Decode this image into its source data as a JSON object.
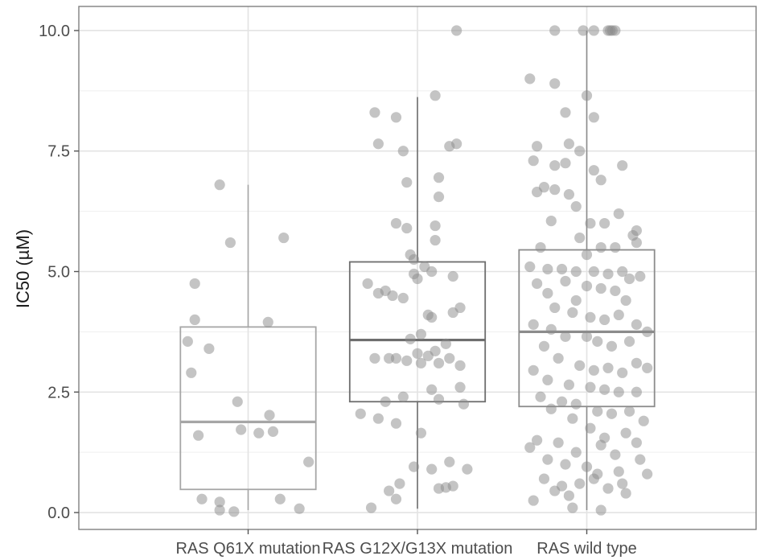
{
  "chart_data": {
    "type": "boxplot",
    "title": "",
    "xlabel": "",
    "ylabel": "IC50 (µM)",
    "ylim": [
      -0.35,
      10.5
    ],
    "yticks": [
      0.0,
      2.5,
      5.0,
      7.5,
      10.0
    ],
    "ytick_labels": [
      "0.0",
      "2.5",
      "5.0",
      "7.5",
      "10.0"
    ],
    "grid": true,
    "categories": [
      "RAS Q61X mutation",
      "RAS G12X/G13X mutation",
      "RAS wild type"
    ],
    "boxes": [
      {
        "category": "RAS Q61X mutation",
        "whisker_low": 0.05,
        "q1": 0.48,
        "median": 1.88,
        "q3": 3.85,
        "whisker_high": 6.8,
        "color": "#a6a6a6"
      },
      {
        "category": "RAS G12X/G13X mutation",
        "whisker_low": 0.08,
        "q1": 2.3,
        "median": 3.58,
        "q3": 5.2,
        "whisker_high": 8.62,
        "color": "#6e6e6e"
      },
      {
        "category": "RAS wild type",
        "whisker_low": 0.05,
        "q1": 2.2,
        "median": 3.75,
        "q3": 5.45,
        "whisker_high": 10.0,
        "color": "#8c8c8c"
      }
    ],
    "points": [
      [
        [
          -0.4,
          6.8
        ],
        [
          -0.25,
          5.6
        ],
        [
          0.5,
          5.7
        ],
        [
          -0.75,
          4.75
        ],
        [
          -0.75,
          4.0
        ],
        [
          0.28,
          3.95
        ],
        [
          -0.55,
          3.4
        ],
        [
          -0.85,
          3.55
        ],
        [
          -0.8,
          2.9
        ],
        [
          -0.15,
          2.3
        ],
        [
          0.3,
          2.02
        ],
        [
          0.35,
          1.68
        ],
        [
          0.15,
          1.65
        ],
        [
          -0.1,
          1.72
        ],
        [
          -0.7,
          1.6
        ],
        [
          0.85,
          1.05
        ],
        [
          -0.65,
          0.28
        ],
        [
          -0.4,
          0.22
        ],
        [
          0.45,
          0.28
        ],
        [
          -0.4,
          0.05
        ],
        [
          -0.2,
          0.02
        ],
        [
          0.72,
          0.08
        ]
      ],
      [
        [
          0.55,
          10.0
        ],
        [
          0.25,
          8.65
        ],
        [
          -0.6,
          8.3
        ],
        [
          -0.3,
          8.2
        ],
        [
          -0.55,
          7.65
        ],
        [
          -0.2,
          7.5
        ],
        [
          0.45,
          7.6
        ],
        [
          0.55,
          7.65
        ],
        [
          0.3,
          6.95
        ],
        [
          -0.15,
          6.85
        ],
        [
          0.3,
          6.55
        ],
        [
          -0.3,
          6.0
        ],
        [
          -0.15,
          5.9
        ],
        [
          0.25,
          5.95
        ],
        [
          0.25,
          5.65
        ],
        [
          -0.1,
          5.35
        ],
        [
          -0.05,
          5.25
        ],
        [
          0.1,
          5.1
        ],
        [
          -0.05,
          4.95
        ],
        [
          0.0,
          4.85
        ],
        [
          0.2,
          5.0
        ],
        [
          0.5,
          4.9
        ],
        [
          -0.7,
          4.75
        ],
        [
          -0.55,
          4.55
        ],
        [
          -0.45,
          4.6
        ],
        [
          -0.35,
          4.5
        ],
        [
          -0.2,
          4.45
        ],
        [
          0.6,
          4.25
        ],
        [
          0.5,
          4.15
        ],
        [
          0.15,
          4.1
        ],
        [
          0.2,
          4.05
        ],
        [
          0.05,
          3.7
        ],
        [
          -0.1,
          3.6
        ],
        [
          0.4,
          3.5
        ],
        [
          0.25,
          3.35
        ],
        [
          -0.6,
          3.2
        ],
        [
          -0.4,
          3.2
        ],
        [
          -0.3,
          3.2
        ],
        [
          -0.15,
          3.15
        ],
        [
          0.0,
          3.3
        ],
        [
          0.15,
          3.25
        ],
        [
          0.3,
          3.1
        ],
        [
          0.45,
          3.2
        ],
        [
          0.6,
          3.05
        ],
        [
          0.05,
          3.1
        ],
        [
          0.2,
          2.55
        ],
        [
          0.6,
          2.6
        ],
        [
          -0.2,
          2.4
        ],
        [
          0.3,
          2.35
        ],
        [
          0.65,
          2.25
        ],
        [
          -0.45,
          2.3
        ],
        [
          -0.8,
          2.05
        ],
        [
          -0.55,
          1.95
        ],
        [
          -0.3,
          1.85
        ],
        [
          0.05,
          1.65
        ],
        [
          0.45,
          1.05
        ],
        [
          0.2,
          0.9
        ],
        [
          -0.05,
          0.95
        ],
        [
          0.7,
          0.9
        ],
        [
          -0.25,
          0.6
        ],
        [
          0.3,
          0.5
        ],
        [
          0.4,
          0.52
        ],
        [
          0.5,
          0.55
        ],
        [
          -0.4,
          0.45
        ],
        [
          -0.3,
          0.28
        ],
        [
          -0.65,
          0.1
        ]
      ],
      [
        [
          -0.45,
          10.0
        ],
        [
          -0.05,
          10.0
        ],
        [
          0.1,
          10.0
        ],
        [
          0.3,
          10.0
        ],
        [
          0.33,
          10.0
        ],
        [
          0.36,
          10.0
        ],
        [
          0.4,
          10.0
        ],
        [
          -0.8,
          9.0
        ],
        [
          -0.45,
          8.9
        ],
        [
          0.0,
          8.65
        ],
        [
          0.1,
          8.2
        ],
        [
          -0.3,
          8.3
        ],
        [
          -0.25,
          7.65
        ],
        [
          -0.45,
          7.2
        ],
        [
          -0.7,
          7.6
        ],
        [
          -0.1,
          7.5
        ],
        [
          -0.3,
          7.25
        ],
        [
          -0.75,
          7.3
        ],
        [
          0.1,
          7.1
        ],
        [
          0.2,
          6.9
        ],
        [
          0.5,
          7.2
        ],
        [
          -0.6,
          6.75
        ],
        [
          -0.7,
          6.65
        ],
        [
          -0.45,
          6.7
        ],
        [
          -0.25,
          6.6
        ],
        [
          -0.15,
          6.35
        ],
        [
          0.05,
          6.0
        ],
        [
          0.25,
          6.0
        ],
        [
          0.45,
          6.2
        ],
        [
          -0.5,
          6.05
        ],
        [
          0.7,
          5.85
        ],
        [
          0.65,
          5.75
        ],
        [
          -0.1,
          5.7
        ],
        [
          0.2,
          5.5
        ],
        [
          0.4,
          5.5
        ],
        [
          0.7,
          5.6
        ],
        [
          -0.65,
          5.5
        ],
        [
          0.0,
          5.35
        ],
        [
          -0.8,
          5.1
        ],
        [
          -0.55,
          5.05
        ],
        [
          -0.35,
          5.05
        ],
        [
          -0.15,
          5.0
        ],
        [
          0.1,
          5.0
        ],
        [
          0.3,
          4.95
        ],
        [
          0.5,
          5.0
        ],
        [
          0.6,
          4.85
        ],
        [
          0.75,
          4.9
        ],
        [
          -0.7,
          4.75
        ],
        [
          -0.3,
          4.8
        ],
        [
          0.0,
          4.7
        ],
        [
          0.2,
          4.65
        ],
        [
          0.4,
          4.6
        ],
        [
          -0.55,
          4.55
        ],
        [
          -0.15,
          4.4
        ],
        [
          0.55,
          4.4
        ],
        [
          -0.45,
          4.25
        ],
        [
          -0.2,
          4.15
        ],
        [
          0.05,
          4.05
        ],
        [
          0.25,
          4.0
        ],
        [
          0.45,
          4.1
        ],
        [
          0.7,
          3.9
        ],
        [
          0.85,
          3.75
        ],
        [
          -0.75,
          3.9
        ],
        [
          -0.5,
          3.8
        ],
        [
          -0.3,
          3.65
        ],
        [
          0.0,
          3.65
        ],
        [
          0.15,
          3.55
        ],
        [
          0.35,
          3.45
        ],
        [
          0.6,
          3.55
        ],
        [
          -0.6,
          3.45
        ],
        [
          -0.4,
          3.2
        ],
        [
          -0.1,
          3.05
        ],
        [
          0.1,
          2.95
        ],
        [
          0.3,
          3.0
        ],
        [
          0.5,
          2.9
        ],
        [
          0.7,
          3.1
        ],
        [
          0.85,
          3.0
        ],
        [
          -0.75,
          2.95
        ],
        [
          -0.55,
          2.75
        ],
        [
          -0.25,
          2.65
        ],
        [
          0.05,
          2.6
        ],
        [
          0.25,
          2.55
        ],
        [
          0.45,
          2.5
        ],
        [
          0.7,
          2.5
        ],
        [
          -0.65,
          2.4
        ],
        [
          -0.35,
          2.3
        ],
        [
          -0.15,
          2.25
        ],
        [
          0.15,
          2.1
        ],
        [
          0.35,
          2.05
        ],
        [
          0.6,
          2.1
        ],
        [
          -0.5,
          2.15
        ],
        [
          -0.2,
          1.95
        ],
        [
          0.05,
          1.75
        ],
        [
          0.25,
          1.55
        ],
        [
          0.55,
          1.65
        ],
        [
          0.8,
          1.9
        ],
        [
          -0.7,
          1.5
        ],
        [
          -0.4,
          1.45
        ],
        [
          -0.15,
          1.25
        ],
        [
          0.2,
          1.4
        ],
        [
          0.4,
          1.2
        ],
        [
          0.7,
          1.45
        ],
        [
          -0.8,
          1.35
        ],
        [
          -0.55,
          1.1
        ],
        [
          -0.3,
          1.0
        ],
        [
          0.0,
          0.95
        ],
        [
          0.15,
          0.8
        ],
        [
          0.45,
          0.85
        ],
        [
          0.75,
          1.1
        ],
        [
          -0.6,
          0.7
        ],
        [
          -0.35,
          0.55
        ],
        [
          -0.1,
          0.6
        ],
        [
          0.1,
          0.7
        ],
        [
          0.3,
          0.5
        ],
        [
          0.5,
          0.6
        ],
        [
          0.85,
          0.8
        ],
        [
          -0.45,
          0.45
        ],
        [
          0.55,
          0.4
        ],
        [
          -0.25,
          0.35
        ],
        [
          -0.75,
          0.25
        ],
        [
          -0.2,
          0.1
        ],
        [
          0.2,
          0.05
        ]
      ]
    ]
  }
}
